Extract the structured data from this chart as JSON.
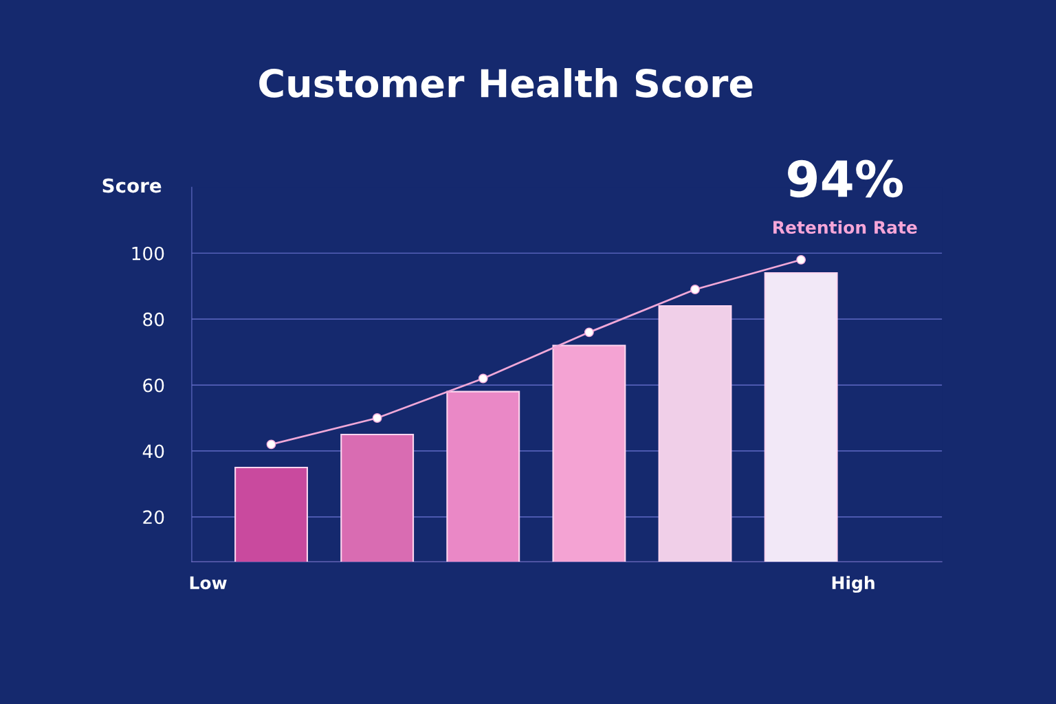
{
  "chart_data": {
    "type": "bar",
    "title": "Customer Health Score",
    "ylabel": "Score",
    "categories": [
      null,
      null,
      null,
      null,
      null,
      null
    ],
    "series": [
      {
        "colors": [
          "#c94a9e",
          "#d96cb2",
          "#ea88c6",
          "#f4a3d3",
          "#f0cfe8",
          "#f2e8f7"
        ],
        "values": [
          35,
          45,
          58,
          72,
          84,
          94
        ]
      },
      {
        "type": "line",
        "color": "#f0a8d8",
        "values": [
          42,
          50,
          62,
          76,
          89,
          98
        ]
      }
    ],
    "ylim": [
      6.4,
      120
    ],
    "yticks": [
      20,
      40,
      60,
      80,
      100
    ],
    "grid": "y",
    "marker": "circle",
    "line_style": "solid",
    "annotations": [
      "94%",
      "Retention Rate",
      "Low",
      "High"
    ]
  }
}
